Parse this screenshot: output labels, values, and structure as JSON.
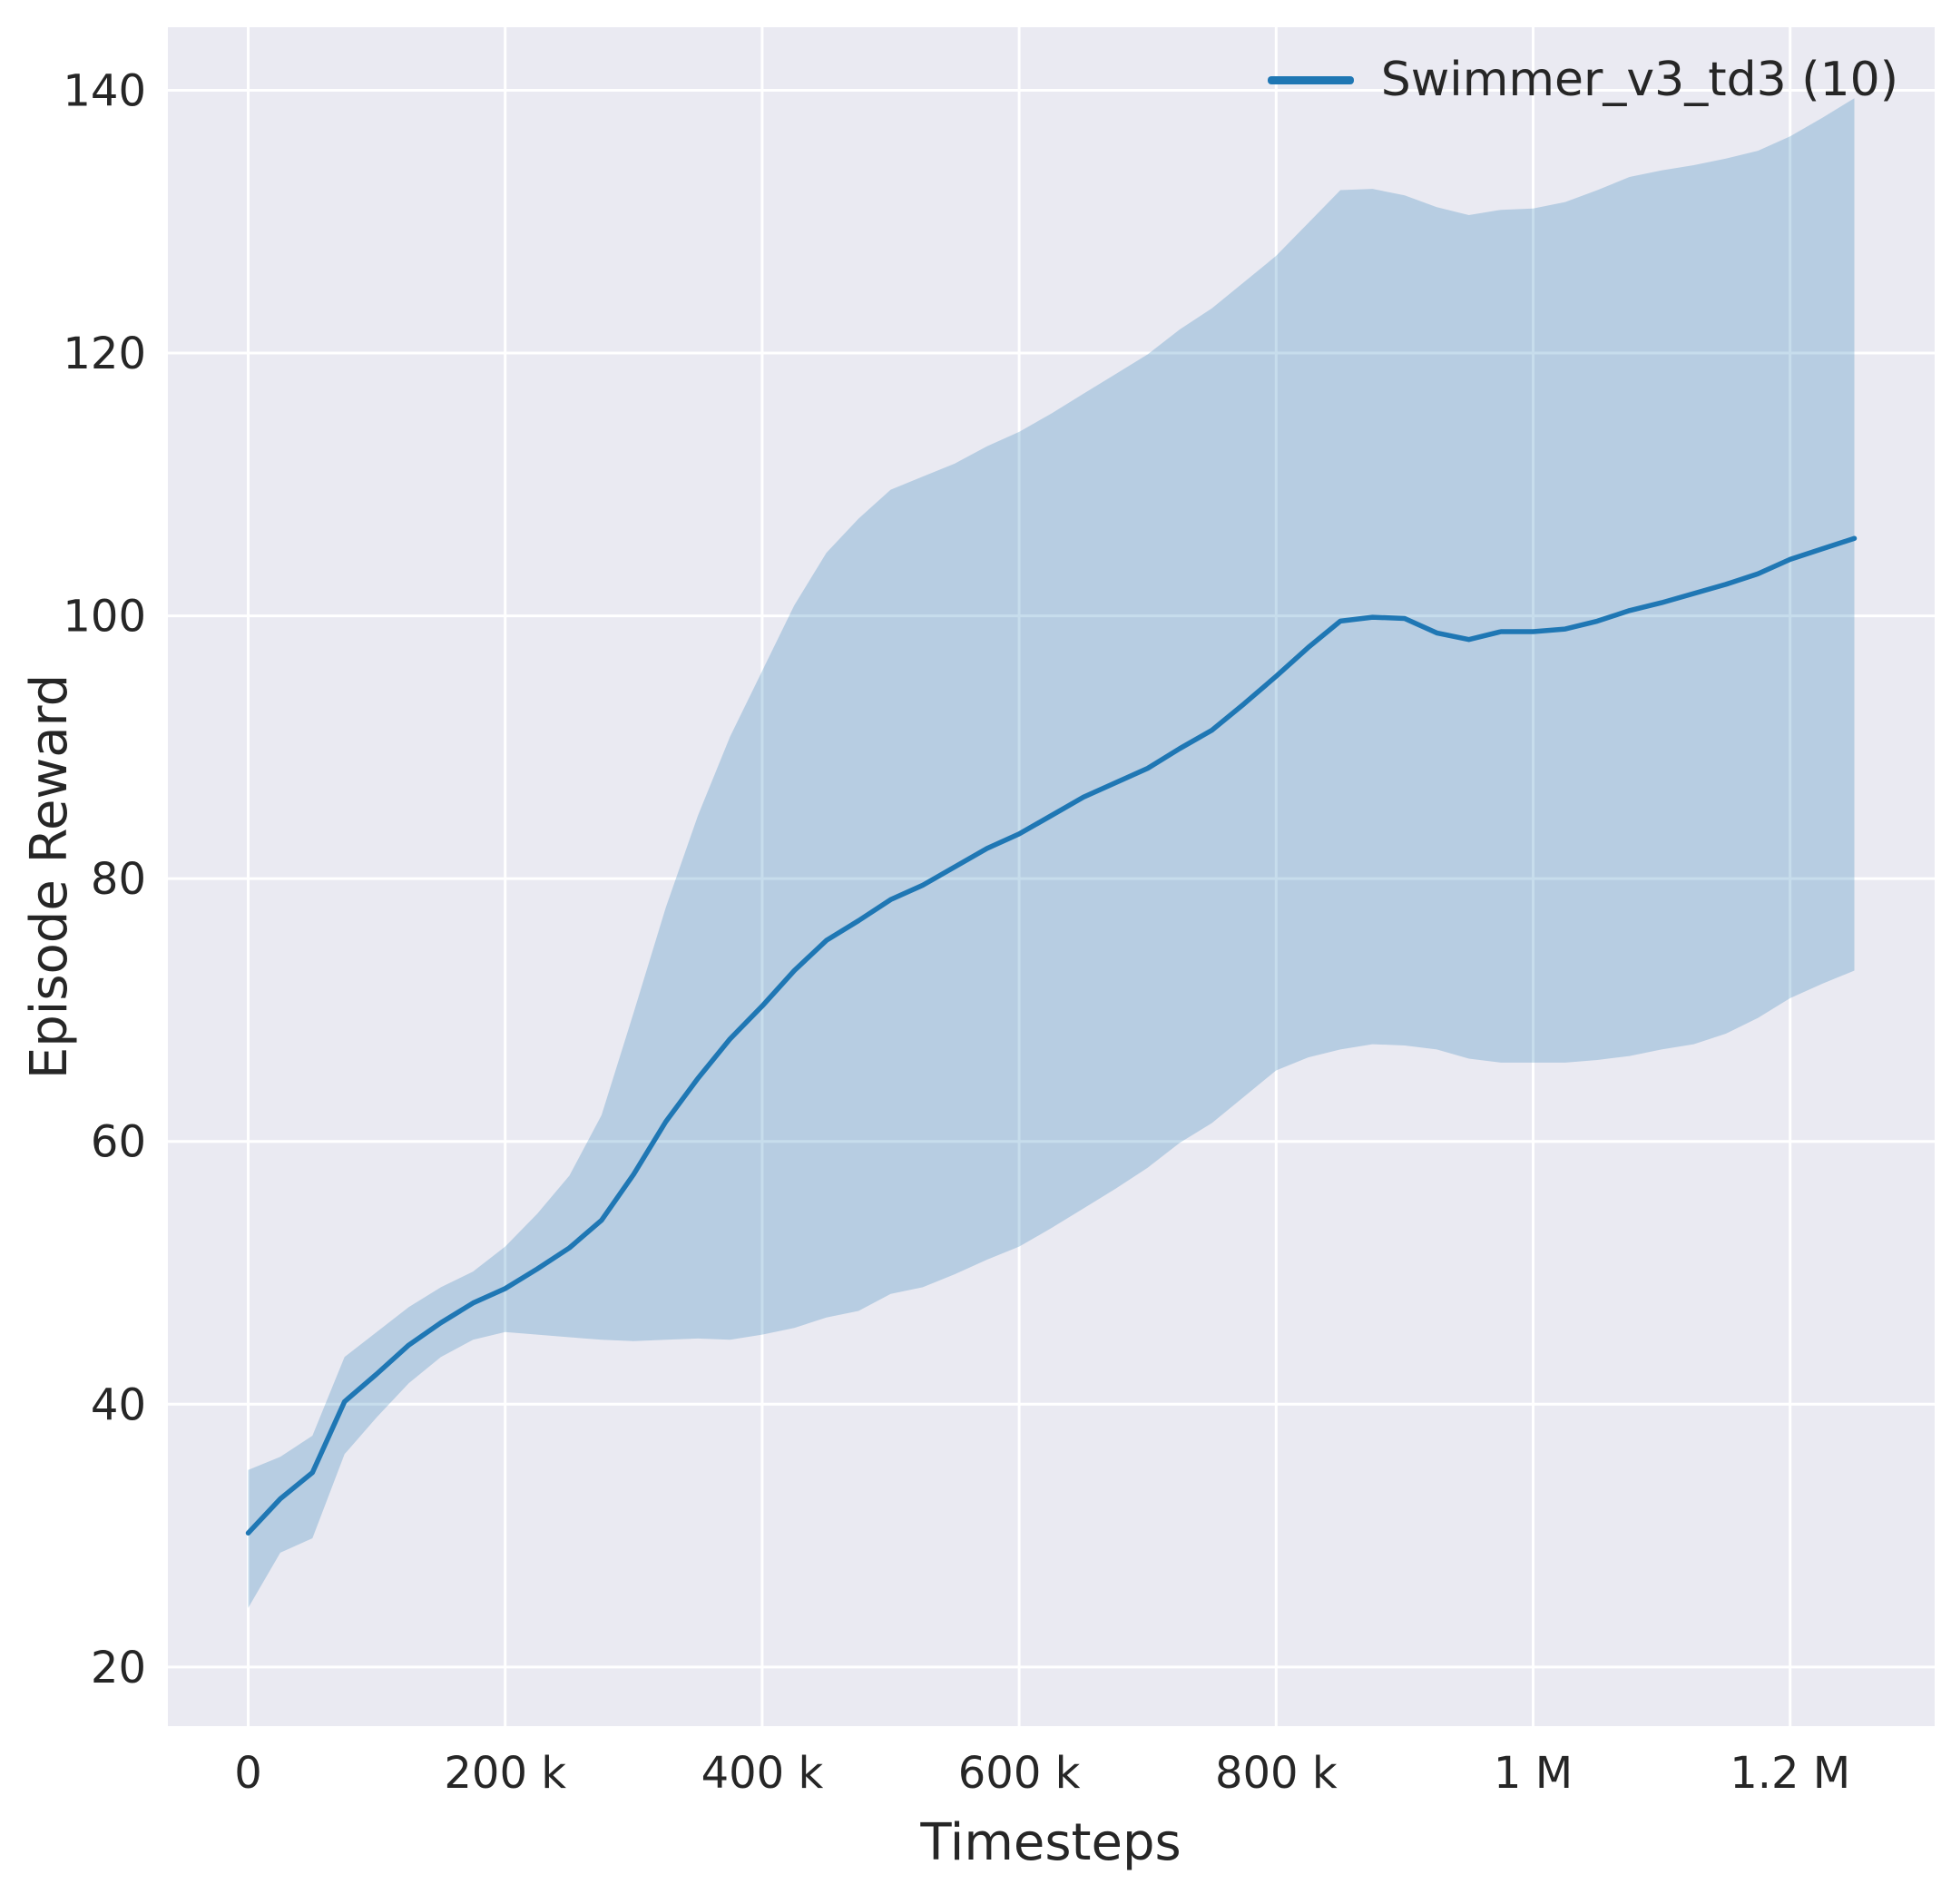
{
  "figure": {
    "background": "#ffffff",
    "plot_background": "#eaeaf2",
    "grid_color": "#ffffff",
    "tick_color": "#262626",
    "label_color": "#262626"
  },
  "chart_data": {
    "type": "line",
    "title": "",
    "xlabel": "Timesteps",
    "ylabel": "Episode Reward",
    "grid": true,
    "legend_position": "upper right",
    "xlim": [
      -62500,
      1312500
    ],
    "ylim": [
      15.5,
      144.8
    ],
    "x_ticks": [
      {
        "value": 0,
        "label": "0"
      },
      {
        "value": 200000,
        "label": "200 k"
      },
      {
        "value": 400000,
        "label": "400 k"
      },
      {
        "value": 600000,
        "label": "600 k"
      },
      {
        "value": 800000,
        "label": "800 k"
      },
      {
        "value": 1000000,
        "label": "1 M"
      },
      {
        "value": 1200000,
        "label": "1.2 M"
      }
    ],
    "y_ticks": [
      {
        "value": 20,
        "label": "20"
      },
      {
        "value": 40,
        "label": "40"
      },
      {
        "value": 60,
        "label": "60"
      },
      {
        "value": 80,
        "label": "80"
      },
      {
        "value": 100,
        "label": "100"
      },
      {
        "value": 120,
        "label": "120"
      },
      {
        "value": 140,
        "label": "140"
      }
    ],
    "series": [
      {
        "name": "Swimmer_v3_td3 (10)",
        "color": "#1f77b4",
        "band_opacity": 0.25,
        "x": [
          0,
          25000,
          50000,
          75000,
          100000,
          125000,
          150000,
          175000,
          200000,
          225000,
          250000,
          275000,
          300000,
          325000,
          350000,
          375000,
          400000,
          425000,
          450000,
          475000,
          500000,
          525000,
          550000,
          575000,
          600000,
          625000,
          650000,
          675000,
          700000,
          725000,
          750000,
          775000,
          800000,
          825000,
          850000,
          875000,
          900000,
          925000,
          950000,
          975000,
          1000000,
          1025000,
          1050000,
          1075000,
          1100000,
          1125000,
          1150000,
          1175000,
          1200000,
          1225000,
          1250000
        ],
        "mean": [
          30.2,
          32.8,
          34.8,
          40.2,
          42.3,
          44.5,
          46.2,
          47.7,
          48.8,
          50.3,
          51.9,
          54.0,
          57.5,
          61.5,
          64.8,
          67.8,
          70.3,
          73.0,
          75.3,
          76.8,
          78.4,
          79.5,
          80.9,
          82.3,
          83.4,
          84.8,
          86.2,
          87.3,
          88.4,
          89.9,
          91.3,
          93.3,
          95.4,
          97.6,
          99.6,
          99.9,
          99.8,
          98.7,
          98.2,
          98.8,
          98.8,
          99.0,
          99.6,
          100.4,
          101.0,
          101.7,
          102.4,
          103.2,
          104.3,
          105.1,
          105.9
        ],
        "lower": [
          24.5,
          28.7,
          29.8,
          36.2,
          39.0,
          41.6,
          43.6,
          44.9,
          45.5,
          45.3,
          45.1,
          44.9,
          44.8,
          44.9,
          45.0,
          44.9,
          45.3,
          45.8,
          46.6,
          47.1,
          48.4,
          48.9,
          49.9,
          51.0,
          52.0,
          53.4,
          54.9,
          56.4,
          58.0,
          59.9,
          61.4,
          63.4,
          65.4,
          66.4,
          67.0,
          67.4,
          67.3,
          67.0,
          66.3,
          66.0,
          66.0,
          66.0,
          66.2,
          66.5,
          67.0,
          67.4,
          68.2,
          69.4,
          70.9,
          72.0,
          73.0
        ],
        "upper": [
          35.0,
          36.0,
          37.6,
          43.6,
          45.5,
          47.4,
          48.9,
          50.1,
          52.0,
          54.5,
          57.4,
          62.0,
          69.8,
          77.8,
          84.8,
          90.8,
          95.8,
          100.8,
          104.8,
          107.4,
          109.6,
          110.6,
          111.6,
          112.9,
          114.0,
          115.4,
          116.9,
          118.4,
          119.9,
          121.8,
          123.4,
          125.4,
          127.4,
          129.9,
          132.4,
          132.5,
          132.0,
          131.1,
          130.5,
          130.9,
          131.0,
          131.5,
          132.4,
          133.4,
          133.9,
          134.3,
          134.8,
          135.4,
          136.5,
          137.9,
          139.4
        ]
      }
    ]
  }
}
